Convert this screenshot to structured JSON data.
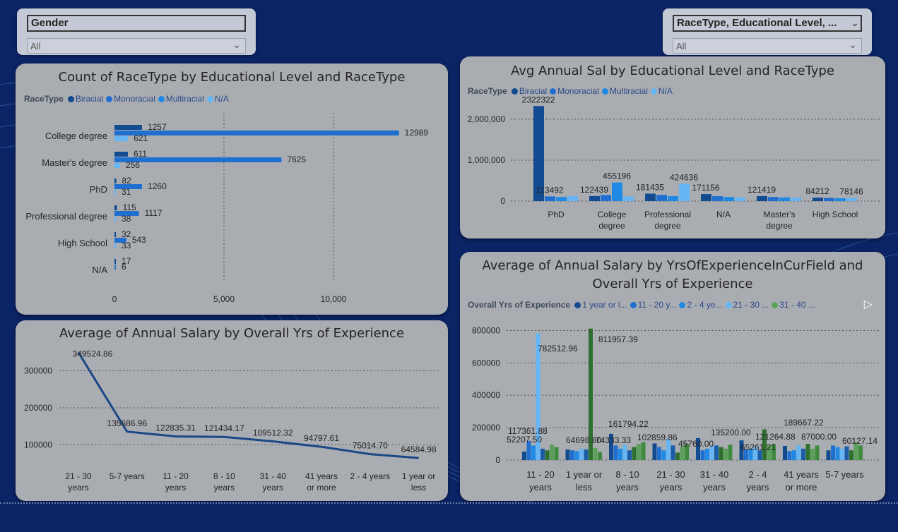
{
  "colors": {
    "biracial": "#124b8f",
    "monoracial": "#1f6fd1",
    "multiracial": "#1e8ae6",
    "na": "#66b6f5",
    "line": "#1a4786",
    "green": "#2e6e2e",
    "green2": "#5aa05a",
    "green3": "#8fce8f"
  },
  "slicers": {
    "gender": {
      "header": "Gender",
      "value": "All"
    },
    "race": {
      "header": "RaceType, Educational Level, ...",
      "value": "All"
    }
  },
  "chart_data": [
    {
      "type": "bar",
      "orientation": "horizontal",
      "title": "Count of RaceType by Educational Level and RaceType",
      "legend_title": "RaceType",
      "legend": [
        "Biracial",
        "Monoracial",
        "Multiracial",
        "N/A"
      ],
      "categories": [
        "College degree",
        "Master's degree",
        "PhD",
        "Professional degree",
        "High School",
        "N/A"
      ],
      "series": [
        {
          "name": "Biracial",
          "values": [
            1257,
            611,
            82,
            115,
            32,
            17
          ]
        },
        {
          "name": "Monoracial",
          "values": [
            12989,
            7625,
            1260,
            1117,
            543,
            6
          ]
        },
        {
          "name": "N/A",
          "values": [
            621,
            256,
            31,
            38,
            33,
            0
          ]
        }
      ],
      "labels": [
        [
          "1257",
          "12989",
          "621"
        ],
        [
          "611",
          "7625",
          "256"
        ],
        [
          "82",
          "1260",
          "31"
        ],
        [
          "115",
          "1117",
          "38"
        ],
        [
          "32",
          "543",
          "33"
        ],
        [
          "17",
          "6",
          ""
        ]
      ],
      "xticks": [
        "0",
        "5,000",
        "10,000"
      ],
      "xlim": [
        0,
        14000
      ]
    },
    {
      "type": "bar",
      "title": "Avg Annual Sal by Educational Level and RaceType",
      "legend_title": "RaceType",
      "legend": [
        "Biracial",
        "Monoracial",
        "Multiracial",
        "N/A"
      ],
      "categories": [
        "PhD",
        "College degree",
        "Professional degree",
        "N/A",
        "Master's degree",
        "High School"
      ],
      "series": [
        {
          "name": "Biracial",
          "values": [
            2322322,
            122439,
            181435,
            171156,
            121419,
            84212
          ]
        },
        {
          "name": "Monoracial",
          "values": [
            113492,
            150000,
            150000,
            120000,
            100000,
            78146
          ]
        },
        {
          "name": "Multiracial",
          "values": [
            100000,
            455196,
            120000,
            100000,
            90000,
            70000
          ]
        },
        {
          "name": "N/A",
          "values": [
            120000,
            110000,
            424636,
            90000,
            80000,
            78146
          ]
        }
      ],
      "data_labels": [
        {
          "cat": 0,
          "series": 0,
          "text": "2322322"
        },
        {
          "cat": 0,
          "series": 1,
          "text": "113492"
        },
        {
          "cat": 1,
          "series": 0,
          "text": "122439"
        },
        {
          "cat": 1,
          "series": 2,
          "text": "455196"
        },
        {
          "cat": 2,
          "series": 0,
          "text": "181435"
        },
        {
          "cat": 2,
          "series": 3,
          "text": "424636"
        },
        {
          "cat": 3,
          "series": 0,
          "text": "171156"
        },
        {
          "cat": 4,
          "series": 0,
          "text": "121419"
        },
        {
          "cat": 5,
          "series": 0,
          "text": "84212"
        },
        {
          "cat": 5,
          "series": 3,
          "text": "78146"
        }
      ],
      "yticks": [
        "2,000,000",
        "1,000,000",
        "0"
      ],
      "ylim": [
        0,
        2500000
      ]
    },
    {
      "type": "line",
      "title": "Average of Annual Salary by Overall Yrs of Experience",
      "categories": [
        "21 - 30 years",
        "5-7 years",
        "11 - 20 years",
        "8 - 10 years",
        "31 - 40 years",
        "41 years or more",
        "2 - 4 years",
        "1 year or less"
      ],
      "values": [
        349524.86,
        135686.96,
        122835.31,
        121434.17,
        109512.32,
        94797.61,
        75014.7,
        64584.98
      ],
      "labels": [
        "349524.86",
        "135686.96",
        "122835.31",
        "121434.17",
        "109512.32",
        "94797.61",
        "75014.70",
        "64584.98"
      ],
      "yticks": [
        "300000",
        "200000",
        "100000"
      ],
      "ylim": [
        0,
        360000
      ]
    },
    {
      "type": "bar",
      "title": "Average of Annual Salary by YrsOfExperienceInCurField and Overall Yrs of Experience",
      "legend_title": "Overall Yrs of Experience",
      "legend": [
        "1 year or l...",
        "11 - 20 y...",
        "2 - 4 ye...",
        "21 - 30 ...",
        "31 - 40 ..."
      ],
      "categories": [
        "11 - 20 years",
        "1 year or less",
        "8 - 10 years",
        "21 - 30 years",
        "31 - 40 years",
        "2 - 4 years",
        "41 years or more",
        "5-7 years"
      ],
      "bars": [
        [
          52207.5,
          117361.88,
          90000,
          782512.96,
          70000,
          60000,
          95000,
          80000
        ],
        [
          64698.8,
          60000,
          55000,
          70000,
          65000,
          811957.39,
          74333.33,
          50000
        ],
        [
          161794.22,
          90000,
          70000,
          95000,
          60000,
          80000,
          100000,
          110000
        ],
        [
          102859.86,
          80000,
          60000,
          130000,
          90000,
          45760.0,
          85000,
          100000
        ],
        [
          135200.0,
          60000,
          70000,
          85000,
          90000,
          80000,
          70000,
          95000
        ],
        [
          121264.88,
          65261.21,
          70000,
          80000,
          60000,
          189667.22,
          90000,
          100000
        ],
        [
          87000.0,
          55000,
          60000,
          90000,
          70000,
          100000,
          70000,
          90000
        ],
        [
          60127.14,
          90000,
          80000,
          70000,
          85000,
          60000,
          110000,
          90000
        ]
      ],
      "data_labels": [
        "782512.96",
        "811957.39",
        "117361.88",
        "52207.50",
        "64698.80",
        "161794.22",
        "74333.33",
        "102859.86",
        "45760.00",
        "135200.00",
        "121264.88",
        "65261.21",
        "189667.22",
        "87000.00",
        "60127.14"
      ],
      "yticks": [
        "800000",
        "600000",
        "400000",
        "200000",
        "0"
      ],
      "ylim": [
        0,
        850000
      ]
    }
  ]
}
